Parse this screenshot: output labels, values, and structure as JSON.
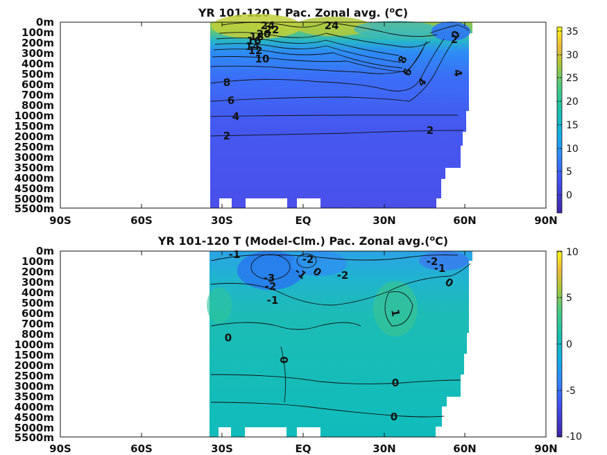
{
  "charts": [
    {
      "title": "YR 101-120 T Pac. Zonal avg. (",
      "title_sup": "o",
      "title_unit": "C)",
      "y_ticks": [
        "0m",
        "100m",
        "200m",
        "300m",
        "400m",
        "500m",
        "600m",
        "700m",
        "800m",
        "1000m",
        "1500m",
        "2000m",
        "2500m",
        "3000m",
        "3500m",
        "4000m",
        "4500m",
        "5000m",
        "5500m"
      ],
      "x_ticks": [
        "90S",
        "60S",
        "30S",
        "EQ",
        "30N",
        "60N",
        "90N"
      ],
      "colorbar": {
        "ticks": [
          "35",
          "30",
          "25",
          "20",
          "15",
          "10",
          "5",
          "0"
        ],
        "range": [
          -4,
          36
        ]
      },
      "contour_labels": [
        "24",
        "24",
        "22",
        "20",
        "18",
        "16",
        "14",
        "12",
        "10",
        "8",
        "6",
        "4",
        "2",
        "2",
        "0",
        "2",
        "8",
        "6",
        "4",
        "4"
      ]
    },
    {
      "title": "YR 101-120 T (Model-Clm.) Pac. Zonal avg.(",
      "title_sup": "o",
      "title_unit": "C)",
      "y_ticks": [
        "0m",
        "100m",
        "200m",
        "300m",
        "400m",
        "500m",
        "600m",
        "700m",
        "800m",
        "1000m",
        "1500m",
        "2000m",
        "2500m",
        "3000m",
        "3500m",
        "4000m",
        "4500m",
        "5000m",
        "5500m"
      ],
      "x_ticks": [
        "90S",
        "60S",
        "30S",
        "EQ",
        "30N",
        "60N",
        "90N"
      ],
      "colorbar": {
        "ticks": [
          "10",
          "5",
          "0",
          "-5",
          "-10"
        ],
        "range": [
          -10,
          10
        ]
      },
      "contour_labels": [
        "-1",
        "-3",
        "-2",
        "-1",
        "-2",
        "-1",
        "0",
        "-2",
        "-2",
        "-1",
        "0",
        "1",
        "0",
        "0",
        "0",
        "0"
      ]
    }
  ],
  "chart_data": [
    {
      "type": "heatmap",
      "title": "YR 101-120 T Pac. Zonal avg. (oC)",
      "x_label_ticks": [
        "90S",
        "60S",
        "30S",
        "EQ",
        "30N",
        "60N",
        "90N"
      ],
      "x_range": [
        -90,
        90
      ],
      "y_label_ticks": [
        "0m",
        "100m",
        "200m",
        "300m",
        "400m",
        "500m",
        "600m",
        "700m",
        "800m",
        "1000m",
        "1500m",
        "2000m",
        "2500m",
        "3000m",
        "3500m",
        "4000m",
        "4500m",
        "5000m",
        "5500m"
      ],
      "colorbar_range": [
        -4,
        36
      ],
      "data_extent_lon": [
        -34,
        60
      ],
      "contours": [
        {
          "level": 24,
          "note": "near surface, 20S and 10N"
        },
        {
          "level": 22,
          "depth_m": 100
        },
        {
          "level": 20,
          "depth_m": 150
        },
        {
          "level": 18,
          "depth_m": 200
        },
        {
          "level": 16,
          "depth_m": 220
        },
        {
          "level": 14,
          "depth_m": 250
        },
        {
          "level": 12,
          "depth_m": 300
        },
        {
          "level": 10,
          "depth_m": 350
        },
        {
          "level": 8,
          "depth_m": 550
        },
        {
          "level": 6,
          "depth_m": 750
        },
        {
          "level": 4,
          "depth_m": 1000
        },
        {
          "level": 2,
          "depth_m": 2000
        },
        {
          "level": 0,
          "note": "near surface at ~55N"
        }
      ]
    },
    {
      "type": "heatmap",
      "title": "YR 101-120 T (Model-Clm.) Pac. Zonal avg.(oC)",
      "x_label_ticks": [
        "90S",
        "60S",
        "30S",
        "EQ",
        "30N",
        "60N",
        "90N"
      ],
      "x_range": [
        -90,
        90
      ],
      "y_label_ticks": [
        "0m",
        "100m",
        "200m",
        "300m",
        "400m",
        "500m",
        "600m",
        "700m",
        "800m",
        "1000m",
        "1500m",
        "2000m",
        "2500m",
        "3000m",
        "3500m",
        "4000m",
        "4500m",
        "5000m",
        "5500m"
      ],
      "colorbar_range": [
        -10,
        10
      ],
      "data_extent_lon": [
        -34,
        60
      ],
      "contours": [
        {
          "level": -3,
          "note": "subsurface ~20S, 200-300m"
        },
        {
          "level": -2,
          "note": "~10S and ~10N, 100-300m"
        },
        {
          "level": -1,
          "note": "upper 500m"
        },
        {
          "level": 0,
          "note": "deep ocean"
        },
        {
          "level": 1,
          "note": "~35N, 500-700m"
        }
      ]
    }
  ]
}
